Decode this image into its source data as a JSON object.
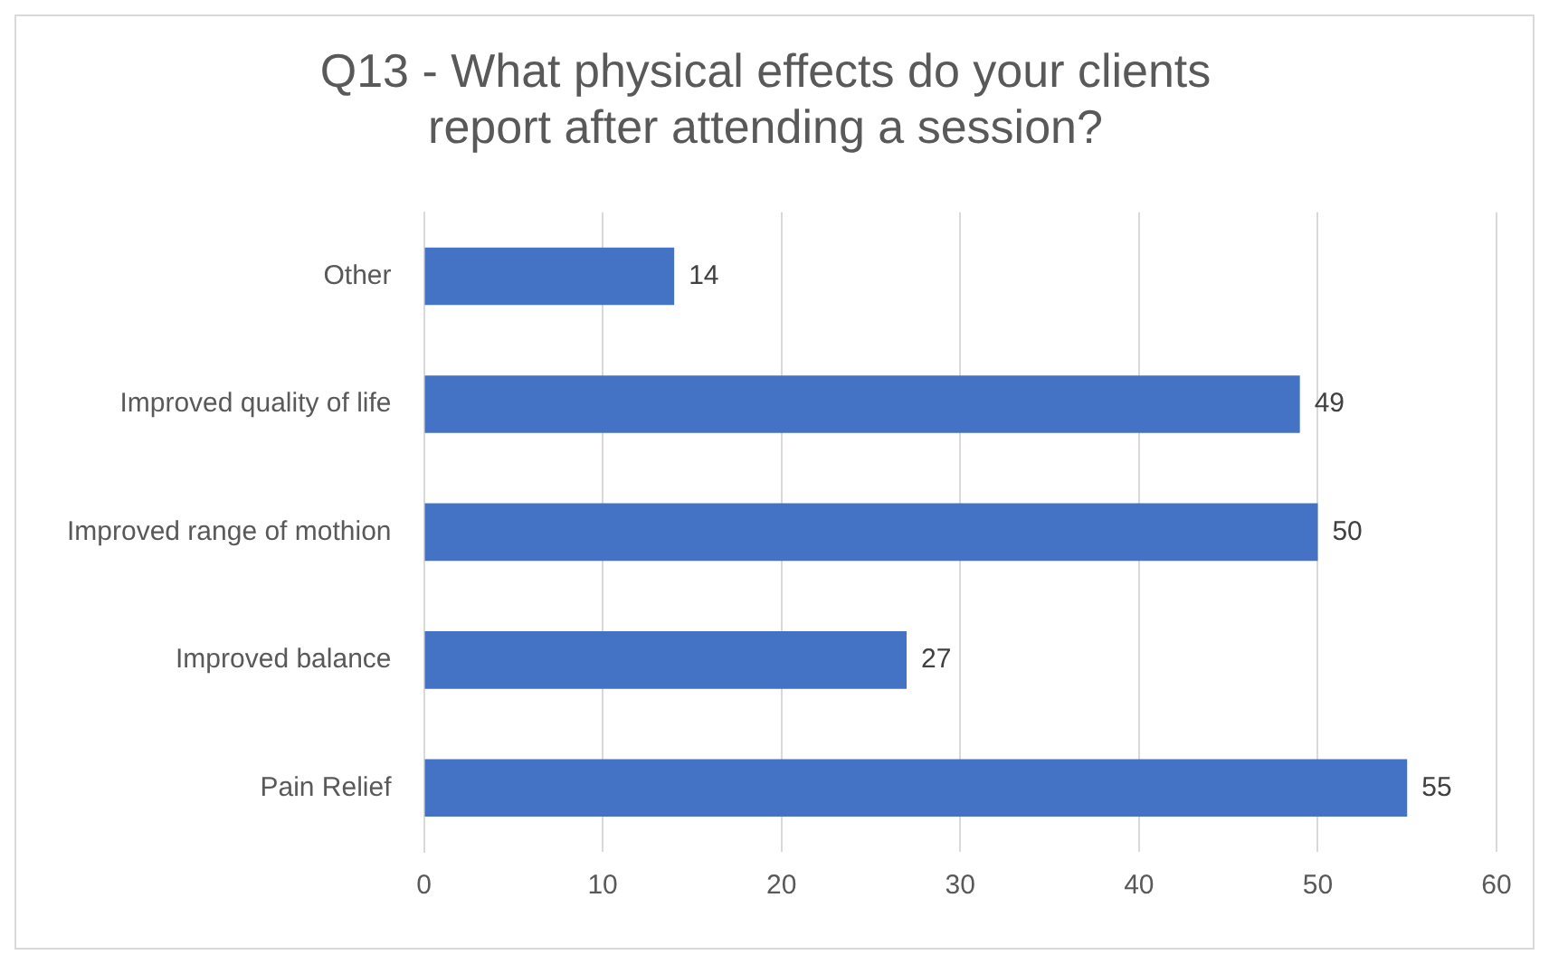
{
  "chart_data": {
    "type": "bar",
    "orientation": "horizontal",
    "title": "Q13 - What physical effects do your clients report after attending a session?",
    "categories": [
      "Other",
      "Improved quality of life",
      "Improved range of mothion",
      "Improved balance",
      "Pain Relief"
    ],
    "values": [
      14,
      49,
      50,
      27,
      55
    ],
    "color": "#4472c4",
    "xlim": [
      0,
      60
    ],
    "xticks": [
      0,
      10,
      20,
      30,
      40,
      50,
      60
    ],
    "grid": "x",
    "data_labels": true
  }
}
